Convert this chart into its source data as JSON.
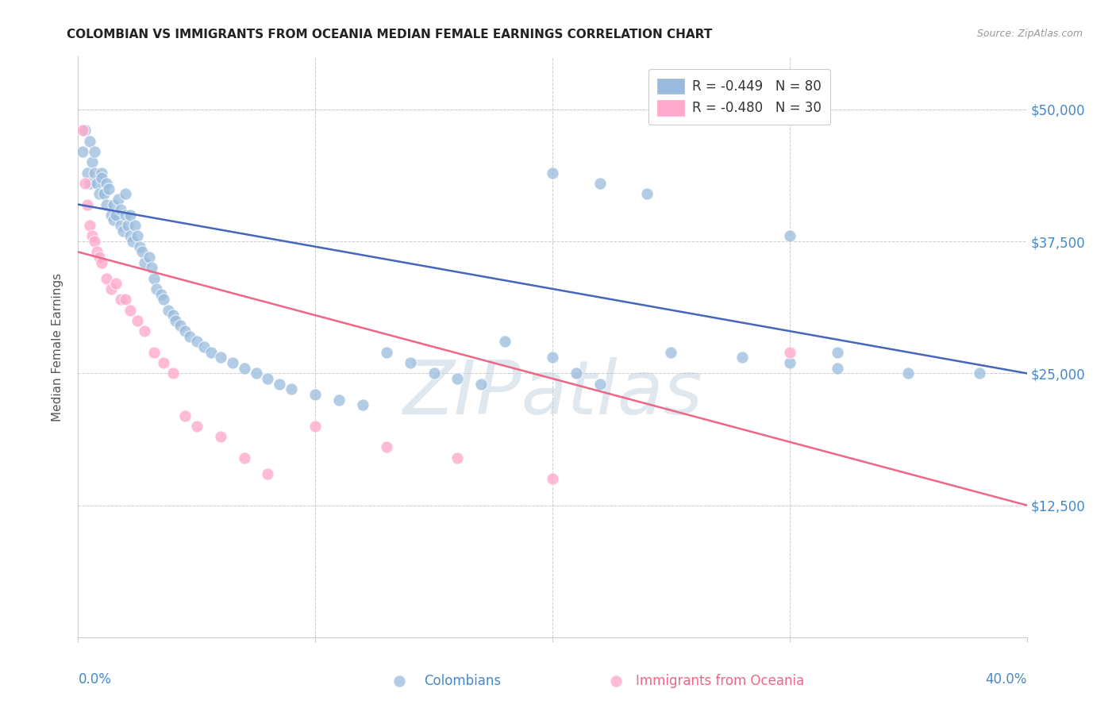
{
  "title": "COLOMBIAN VS IMMIGRANTS FROM OCEANIA MEDIAN FEMALE EARNINGS CORRELATION CHART",
  "source": "Source: ZipAtlas.com",
  "ylabel": "Median Female Earnings",
  "yticks": [
    0,
    12500,
    25000,
    37500,
    50000
  ],
  "ytick_labels": [
    "",
    "$12,500",
    "$25,000",
    "$37,500",
    "$50,000"
  ],
  "xlim": [
    0.0,
    0.4
  ],
  "ylim": [
    0,
    55000
  ],
  "legend_r1": "R = -0.449",
  "legend_n1": "N = 80",
  "legend_r2": "R = -0.480",
  "legend_n2": "N = 30",
  "blue_color": "#99BBDD",
  "pink_color": "#FFAACC",
  "line_blue": "#4466BB",
  "line_pink": "#EE6688",
  "watermark": "ZIPatlas",
  "blue_scatter_x": [
    0.002,
    0.003,
    0.004,
    0.005,
    0.005,
    0.006,
    0.007,
    0.007,
    0.008,
    0.009,
    0.01,
    0.01,
    0.011,
    0.012,
    0.012,
    0.013,
    0.014,
    0.015,
    0.015,
    0.016,
    0.017,
    0.018,
    0.018,
    0.019,
    0.02,
    0.02,
    0.021,
    0.022,
    0.022,
    0.023,
    0.024,
    0.025,
    0.026,
    0.027,
    0.028,
    0.03,
    0.031,
    0.032,
    0.033,
    0.035,
    0.036,
    0.038,
    0.04,
    0.041,
    0.043,
    0.045,
    0.047,
    0.05,
    0.053,
    0.056,
    0.06,
    0.065,
    0.07,
    0.075,
    0.08,
    0.085,
    0.09,
    0.1,
    0.11,
    0.12,
    0.13,
    0.14,
    0.15,
    0.16,
    0.17,
    0.18,
    0.2,
    0.21,
    0.22,
    0.25,
    0.28,
    0.3,
    0.32,
    0.35,
    0.38,
    0.2,
    0.22,
    0.24,
    0.3,
    0.32
  ],
  "blue_scatter_y": [
    46000,
    48000,
    44000,
    47000,
    43000,
    45000,
    46000,
    44000,
    43000,
    42000,
    44000,
    43500,
    42000,
    41000,
    43000,
    42500,
    40000,
    41000,
    39500,
    40000,
    41500,
    39000,
    40500,
    38500,
    40000,
    42000,
    39000,
    38000,
    40000,
    37500,
    39000,
    38000,
    37000,
    36500,
    35500,
    36000,
    35000,
    34000,
    33000,
    32500,
    32000,
    31000,
    30500,
    30000,
    29500,
    29000,
    28500,
    28000,
    27500,
    27000,
    26500,
    26000,
    25500,
    25000,
    24500,
    24000,
    23500,
    23000,
    22500,
    22000,
    27000,
    26000,
    25000,
    24500,
    24000,
    28000,
    26500,
    25000,
    24000,
    27000,
    26500,
    26000,
    25500,
    25000,
    25000,
    44000,
    43000,
    42000,
    38000,
    27000
  ],
  "pink_scatter_x": [
    0.002,
    0.003,
    0.004,
    0.005,
    0.006,
    0.007,
    0.008,
    0.009,
    0.01,
    0.012,
    0.014,
    0.016,
    0.018,
    0.02,
    0.022,
    0.025,
    0.028,
    0.032,
    0.036,
    0.04,
    0.045,
    0.05,
    0.06,
    0.07,
    0.08,
    0.1,
    0.13,
    0.16,
    0.2,
    0.3
  ],
  "pink_scatter_y": [
    48000,
    43000,
    41000,
    39000,
    38000,
    37500,
    36500,
    36000,
    35500,
    34000,
    33000,
    33500,
    32000,
    32000,
    31000,
    30000,
    29000,
    27000,
    26000,
    25000,
    21000,
    20000,
    19000,
    17000,
    15500,
    20000,
    18000,
    17000,
    15000,
    27000
  ],
  "blue_line_x": [
    0.0,
    0.4
  ],
  "blue_line_y": [
    41000,
    25000
  ],
  "pink_line_x": [
    0.0,
    0.4
  ],
  "pink_line_y": [
    36500,
    12500
  ],
  "bg_color": "#FFFFFF",
  "grid_color": "#CCCCCC",
  "title_color": "#222222",
  "axis_color": "#4488CC",
  "watermark_color": "#BBCCDD",
  "watermark_alpha": 0.45,
  "source_color": "#999999",
  "ylabel_color": "#555555",
  "bottom_label_blue": "Colombians",
  "bottom_label_pink": "Immigrants from Oceania"
}
